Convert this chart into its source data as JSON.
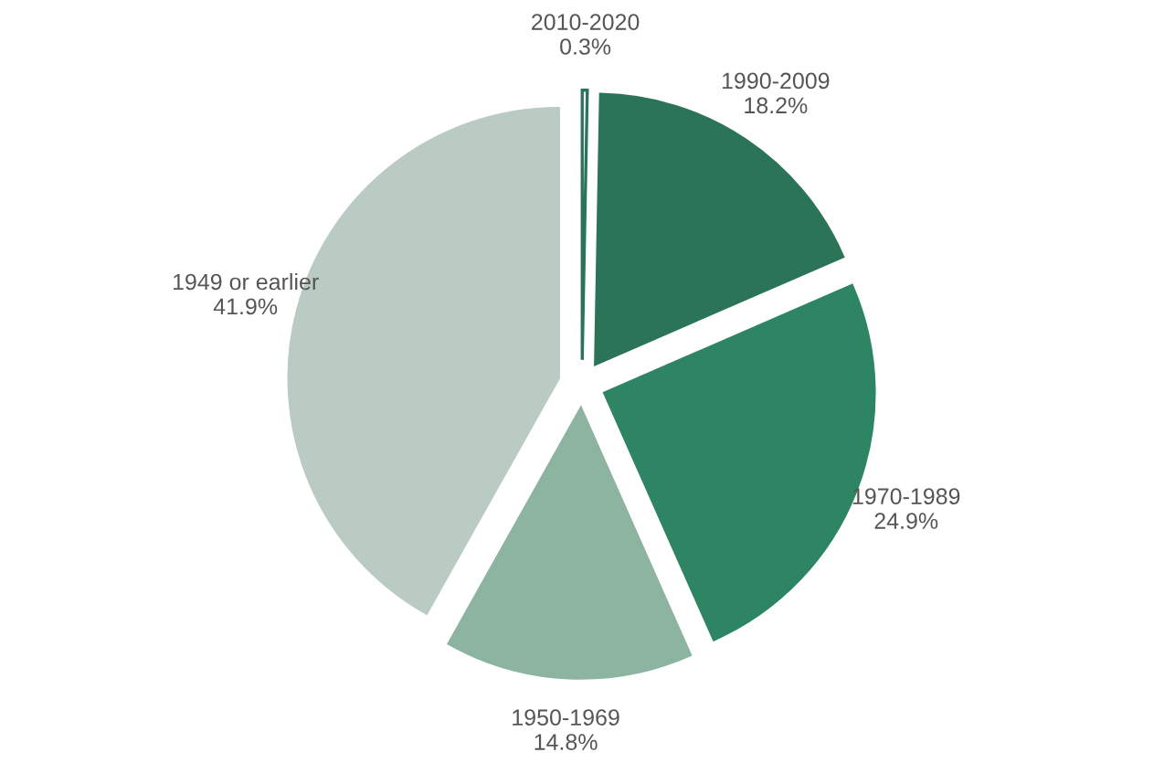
{
  "chart_data": {
    "type": "pie",
    "categories": [
      "2010-2020",
      "1990-2009",
      "1970-1989",
      "1950-1969",
      "1949 or earlier"
    ],
    "values": [
      0.3,
      18.2,
      24.9,
      14.8,
      41.9
    ],
    "value_labels": [
      "0.3%",
      "18.2%",
      "24.9%",
      "14.8%",
      "41.9%"
    ],
    "colors": [
      "#ffffff",
      "#2b7458",
      "#2e8564",
      "#8db3a1",
      "#b9cbc2"
    ]
  }
}
